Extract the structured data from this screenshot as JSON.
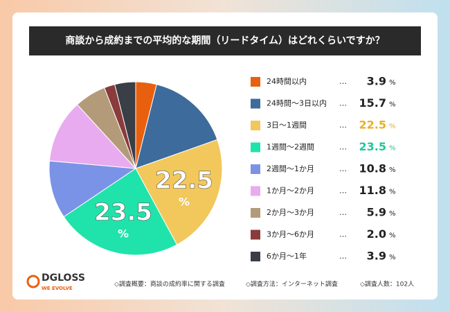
{
  "chart_data": {
    "type": "pie",
    "title": "商談から成約までの平均的な期間（リードタイム）はどれくらいですか？",
    "categories": [
      "24時間以内",
      "24時間〜3日以内",
      "3日〜1週間",
      "1週間〜2週間",
      "2週間〜1か月",
      "1か月〜2か月",
      "2か月〜3か月",
      "3か月〜6か月",
      "6か月〜1年"
    ],
    "values": [
      3.9,
      15.7,
      22.5,
      23.5,
      10.8,
      11.8,
      5.9,
      2.0,
      3.9
    ],
    "value_labels": [
      "3.9",
      "15.7",
      "22.5",
      "23.5",
      "10.8",
      "11.8",
      "5.9",
      "2.0",
      "3.9"
    ],
    "colors": [
      "#e8600e",
      "#3d6b9c",
      "#f2c75c",
      "#1fe3aa",
      "#7b93e6",
      "#e9abf0",
      "#b39b7a",
      "#8a3b3b",
      "#3a3e46"
    ],
    "value_label_colors": [
      "#222222",
      "#222222",
      "#e8b028",
      "#1dc99a",
      "#222222",
      "#222222",
      "#222222",
      "#222222",
      "#222222"
    ],
    "pie_labels": [
      "22.5",
      "23.5"
    ],
    "unit": "%",
    "leader": "…"
  },
  "footer": {
    "logo": "DGLOSS",
    "tagline": "WE EVOLVE",
    "notes": [
      "◇調査概要：商談の成約率に関する調査",
      "◇調査方法：インターネット調査",
      "◇調査人数：102人"
    ]
  }
}
